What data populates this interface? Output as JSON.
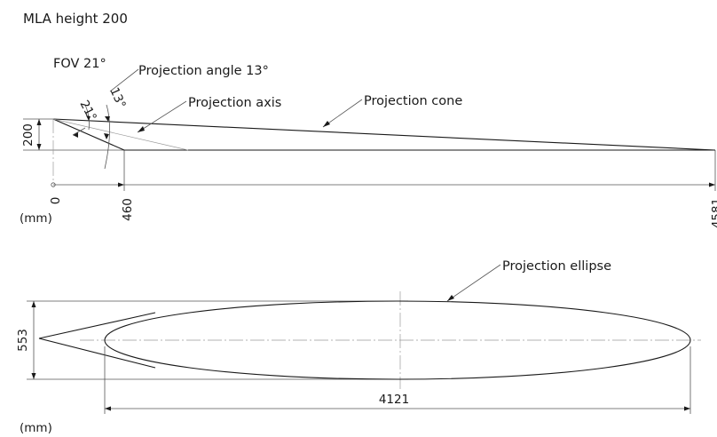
{
  "title": "MLA height 200",
  "side_view": {
    "fov_label": "FOV 21°",
    "fov_angle": "21°",
    "projection_angle_label": "Projection angle 13°",
    "projection_angle": "13°",
    "projection_axis_label": "Projection axis",
    "projection_cone_label": "Projection cone",
    "height_dim": "200",
    "x_origin": "0",
    "x_near": "460",
    "x_far": "4581",
    "unit": "(mm)"
  },
  "top_view": {
    "projection_ellipse_label": "Projection ellipse",
    "width_dim": "553",
    "length_dim": "4121",
    "unit": "(mm)"
  }
}
